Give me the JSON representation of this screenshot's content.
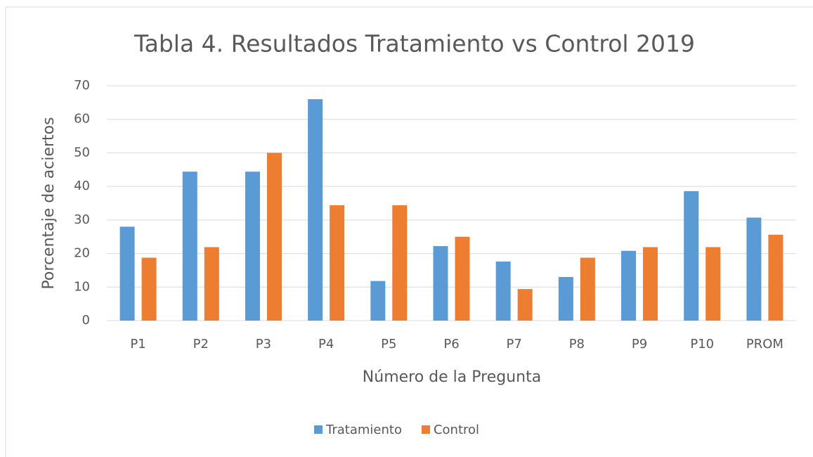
{
  "chart_data": {
    "type": "bar",
    "title": "Tabla 4. Resultados Tratamiento vs Control 2019",
    "x_label": "Número de la Pregunta",
    "y_label": "Porcentaje de aciertos",
    "categories": [
      "P1",
      "P2",
      "P3",
      "P4",
      "P5",
      "P6",
      "P7",
      "P8",
      "P9",
      "P10",
      "PROM"
    ],
    "series": [
      {
        "name": "Tratamiento",
        "color": "#5b9bd5",
        "values": [
          28,
          44.4,
          44.4,
          66,
          11.8,
          22.2,
          17.6,
          13,
          20.8,
          38.6,
          30.7
        ]
      },
      {
        "name": "Control",
        "color": "#ed7d31",
        "values": [
          18.75,
          21.9,
          50,
          34.4,
          34.4,
          25,
          9.4,
          18.75,
          21.9,
          21.9,
          25.6
        ]
      }
    ],
    "ylim": [
      0,
      70
    ],
    "yticks": [
      0,
      10,
      20,
      30,
      40,
      50,
      60,
      70
    ],
    "grid": true,
    "legend": "bottom"
  }
}
